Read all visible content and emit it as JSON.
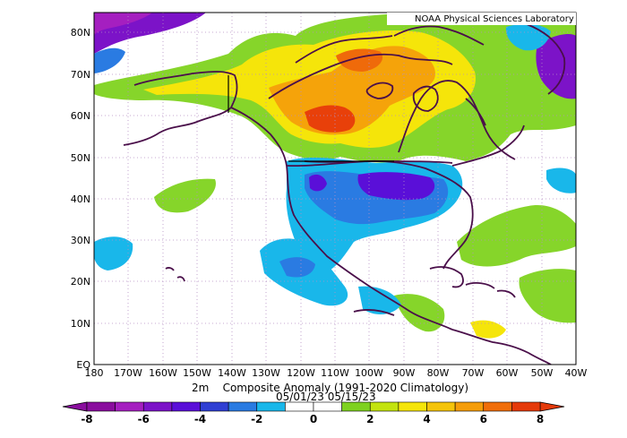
{
  "map": {
    "credit": "NOAA Physical Sciences Laboratory",
    "lat_labels": [
      "80N",
      "70N",
      "60N",
      "50N",
      "40N",
      "30N",
      "20N",
      "10N",
      "EQ"
    ],
    "lon_labels": [
      "180",
      "170W",
      "160W",
      "150W",
      "140W",
      "130W",
      "120W",
      "110W",
      "100W",
      "90W",
      "80W",
      "70W",
      "60W",
      "50W",
      "40W"
    ]
  },
  "title": {
    "line1": "2m    Composite Anomaly (1991-2020 Climatology)",
    "line2": "05/01/23 05/15/23"
  },
  "colorbar": {
    "labels": [
      "-8",
      "-6",
      "-4",
      "-2",
      "0",
      "2",
      "4",
      "6",
      "8"
    ],
    "colors": [
      "#8a0e9e",
      "#a51fc0",
      "#7c13c8",
      "#5a0fd8",
      "#2f3fd3",
      "#2a7be2",
      "#19b7ea",
      "#ffffff",
      "#ffffff",
      "#7ed11f",
      "#c3e30f",
      "#f5e50a",
      "#f5c40a",
      "#f59d0a",
      "#f06e0a",
      "#e53a0a"
    ]
  }
}
